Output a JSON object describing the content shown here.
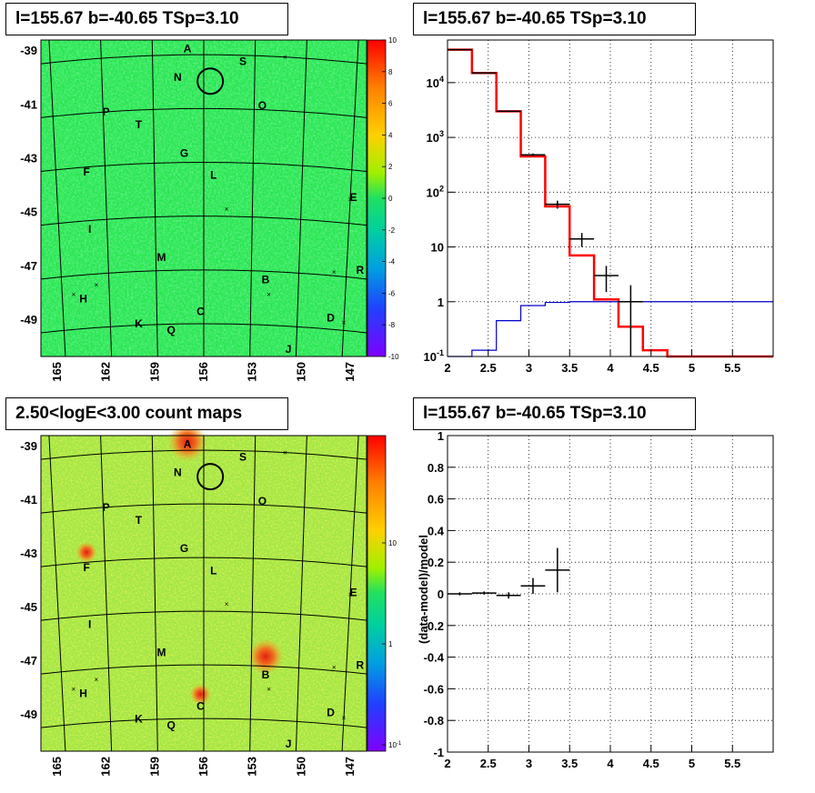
{
  "titles": {
    "tl": "l=155.67 b=-40.65 TSp=3.10",
    "tr": "l=155.67 b=-40.65 TSp=3.10",
    "bl": "2.50<logE<3.00 count maps",
    "br": "l=155.67 b=-40.65 TSp=3.10"
  },
  "colors": {
    "model_line": "#ff0000",
    "background_line": "#0000cc",
    "data_points": "#000000",
    "map_background_tl": "#28e650",
    "map_background_bl": "#a0e646"
  },
  "chart_data": [
    {
      "type": "heatmap",
      "panel": "tl",
      "xlabel": "",
      "ylabel": "",
      "x_ticks": [
        "165",
        "162",
        "159",
        "156",
        "153",
        "150",
        "147"
      ],
      "y_ticks": [
        "-39",
        "-41",
        "-43",
        "-45",
        "-47",
        "-49"
      ],
      "palette_ticks": [
        "10",
        "8",
        "6",
        "4",
        "2",
        "0",
        "-2",
        "-4",
        "-6",
        "-8",
        "-10"
      ],
      "palette_range": [
        -10,
        10
      ],
      "source_labels": [
        "A",
        "S",
        "N",
        "P",
        "O",
        "T",
        "G",
        "F",
        "L",
        "E",
        "I",
        "M",
        "R",
        "B",
        "H",
        "K",
        "Q",
        "C",
        "D",
        "J"
      ]
    },
    {
      "type": "line",
      "panel": "tr",
      "log_y": true,
      "xlim": [
        2,
        6
      ],
      "ylim": [
        0.1,
        60000
      ],
      "x_ticks": [
        "2",
        "2.5",
        "3",
        "3.5",
        "4",
        "4.5",
        "5",
        "5.5"
      ],
      "y_ticks": [
        "10^{-1}",
        "1",
        "10",
        "10^{2}",
        "10^{3}",
        "10^{4}"
      ],
      "grid": true,
      "series": [
        {
          "style": "step",
          "color": "red",
          "x": [
            2.0,
            2.3,
            2.6,
            2.9,
            3.2,
            3.5,
            3.8,
            4.1,
            4.4,
            4.7,
            5.0,
            5.3,
            5.6,
            5.9,
            6.0
          ],
          "values": [
            40000,
            15000,
            3000,
            450,
            55,
            7,
            1.1,
            0.35,
            0.13,
            0.1,
            0.1,
            0.1,
            0.1,
            0.1,
            0.1
          ]
        },
        {
          "style": "step",
          "color": "blue",
          "x": [
            2.0,
            2.3,
            2.6,
            2.9,
            3.2,
            3.5,
            3.8,
            4.1,
            4.4,
            4.7,
            5.0,
            5.3,
            5.6,
            5.9,
            6.0
          ],
          "values": [
            0.1,
            0.13,
            0.45,
            0.85,
            0.97,
            1.0,
            1.0,
            1.0,
            1.0,
            1.0,
            1.0,
            1.0,
            1.0,
            1.0,
            1.0
          ]
        },
        {
          "style": "errorbars",
          "color": "black",
          "points": [
            {
              "x": 2.15,
              "y": 40000,
              "xerr": 0.15,
              "ylo": 39500,
              "yhi": 40500
            },
            {
              "x": 2.45,
              "y": 15000,
              "xerr": 0.15,
              "ylo": 14800,
              "yhi": 15200
            },
            {
              "x": 2.75,
              "y": 3000,
              "xerr": 0.15,
              "ylo": 2900,
              "yhi": 3100
            },
            {
              "x": 3.05,
              "y": 480,
              "xerr": 0.15,
              "ylo": 450,
              "yhi": 510
            },
            {
              "x": 3.35,
              "y": 60,
              "xerr": 0.15,
              "ylo": 50,
              "yhi": 70
            },
            {
              "x": 3.65,
              "y": 14,
              "xerr": 0.15,
              "ylo": 10,
              "yhi": 18
            },
            {
              "x": 3.95,
              "y": 3,
              "xerr": 0.15,
              "ylo": 1.5,
              "yhi": 4.5
            },
            {
              "x": 4.25,
              "y": 1,
              "xerr": 0.15,
              "ylo": 0.1,
              "yhi": 2
            }
          ]
        }
      ]
    },
    {
      "type": "heatmap",
      "panel": "bl",
      "xlabel": "",
      "ylabel": "",
      "x_ticks": [
        "165",
        "162",
        "159",
        "156",
        "153",
        "150",
        "147"
      ],
      "y_ticks": [
        "-39",
        "-41",
        "-43",
        "-45",
        "-47",
        "-49"
      ],
      "palette_ticks": [
        "10",
        "1",
        "10^{-1}"
      ],
      "palette_log": true,
      "source_labels": [
        "A",
        "S",
        "N",
        "P",
        "O",
        "T",
        "G",
        "F",
        "L",
        "E",
        "I",
        "M",
        "R",
        "B",
        "H",
        "K",
        "Q",
        "C",
        "D",
        "J"
      ]
    },
    {
      "type": "scatter",
      "panel": "br",
      "xlim": [
        2,
        6
      ],
      "ylim": [
        -1,
        1
      ],
      "ylabel": "(data-model)/model",
      "x_ticks": [
        "2",
        "2.5",
        "3",
        "3.5",
        "4",
        "4.5",
        "5",
        "5.5"
      ],
      "y_ticks": [
        "1",
        "0.8",
        "0.6",
        "0.4",
        "0.2",
        "0",
        "-0.2",
        "-0.4",
        "-0.6",
        "-0.8",
        "-1"
      ],
      "grid": true,
      "points": [
        {
          "x": 2.15,
          "y": 0.0,
          "xerr": 0.15,
          "yerr": 0.01
        },
        {
          "x": 2.45,
          "y": 0.005,
          "xerr": 0.15,
          "yerr": 0.01
        },
        {
          "x": 2.75,
          "y": -0.01,
          "xerr": 0.15,
          "yerr": 0.02
        },
        {
          "x": 3.05,
          "y": 0.05,
          "xerr": 0.15,
          "yerr": 0.05
        },
        {
          "x": 3.35,
          "y": 0.15,
          "xerr": 0.15,
          "yerr": 0.14
        }
      ]
    }
  ]
}
